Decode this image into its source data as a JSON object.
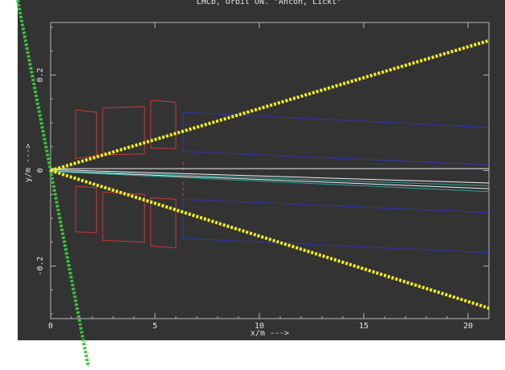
{
  "chart_data": {
    "type": "line",
    "title": "LHCb, Orbit ON. \"Ahcoh, Lickt\"",
    "xlabel": "x/m --->",
    "ylabel": "y/m --->",
    "xlim": [
      0,
      21
    ],
    "ylim": [
      -0.31,
      0.31
    ],
    "x_ticks": [
      0,
      5,
      10,
      15,
      20
    ],
    "y_ticks": [
      -0.2,
      0,
      0.2
    ],
    "x_tick_labels": [
      "0",
      "5",
      "10",
      "15",
      "20"
    ],
    "y_tick_labels": [
      "-0.2",
      "0",
      "0.2"
    ],
    "grid": false,
    "colors": {
      "background": "#333333",
      "frame": "#b4b4b4",
      "text": "#e6e6e6",
      "red": "#c93a3a",
      "blue": "#2f35b8",
      "white": "#f2f2f2",
      "teal": "#2aa59a",
      "green": "#39c93b",
      "yellow": "#f4f01e"
    },
    "series": [
      {
        "color": "red",
        "style": "solid",
        "x": [
          1.2,
          2.2,
          2.2,
          1.2,
          1.2
        ],
        "y": [
          0.127,
          0.122,
          0.031,
          0.025,
          0.127
        ]
      },
      {
        "color": "red",
        "style": "solid",
        "x": [
          2.5,
          4.5,
          4.5,
          2.5,
          2.5
        ],
        "y": [
          0.131,
          0.134,
          0.035,
          0.033,
          0.131
        ]
      },
      {
        "color": "red",
        "style": "solid",
        "x": [
          4.8,
          6.0,
          6.0,
          4.8,
          4.8
        ],
        "y": [
          0.147,
          0.143,
          0.046,
          0.047,
          0.147
        ]
      },
      {
        "color": "red",
        "style": "solid",
        "x": [
          1.2,
          2.2,
          2.2,
          1.2,
          1.2
        ],
        "y": [
          -0.033,
          -0.036,
          -0.13,
          -0.128,
          -0.033
        ]
      },
      {
        "color": "red",
        "style": "solid",
        "x": [
          2.5,
          4.5,
          4.5,
          2.5,
          2.5
        ],
        "y": [
          -0.045,
          -0.05,
          -0.15,
          -0.146,
          -0.045
        ]
      },
      {
        "color": "red",
        "style": "solid",
        "x": [
          4.8,
          6.0,
          6.0,
          4.8,
          4.8
        ],
        "y": [
          -0.057,
          -0.06,
          -0.162,
          -0.158,
          -0.057
        ]
      },
      {
        "color": "red",
        "style": "dashed",
        "x": [
          6.35,
          6.35
        ],
        "y": [
          0.0,
          0.023
        ]
      },
      {
        "color": "red",
        "style": "dashed",
        "x": [
          6.35,
          6.35
        ],
        "y": [
          -0.023,
          -0.052
        ]
      },
      {
        "color": "blue",
        "style": "solid",
        "x": [
          21.0,
          6.35,
          6.35,
          21.0
        ],
        "y": [
          0.09,
          0.122,
          0.04,
          0.012
        ]
      },
      {
        "color": "blue",
        "style": "solid",
        "x": [
          21.0,
          6.35,
          6.35,
          21.0
        ],
        "y": [
          -0.088,
          -0.06,
          -0.142,
          -0.172
        ]
      },
      {
        "color": "white",
        "style": "solid",
        "x": [
          0,
          21
        ],
        "y": [
          0.004,
          0.004
        ]
      },
      {
        "color": "white",
        "style": "solid",
        "x": [
          0,
          21
        ],
        "y": [
          0.002,
          -0.026
        ]
      },
      {
        "color": "white",
        "style": "solid",
        "x": [
          0,
          21
        ],
        "y": [
          -0.001,
          -0.038
        ]
      },
      {
        "color": "teal",
        "style": "solid",
        "x": [
          0,
          21
        ],
        "y": [
          0.0,
          -0.032
        ]
      },
      {
        "color": "teal",
        "style": "solid",
        "x": [
          0,
          21
        ],
        "y": [
          -0.002,
          -0.044
        ]
      },
      {
        "color": "green",
        "style": "dotted",
        "x": [
          1.94,
          0.0,
          -2.03
        ],
        "y": [
          -0.44,
          0.0,
          0.46
        ]
      },
      {
        "color": "yellow",
        "style": "dotted",
        "x": [
          0,
          21.0
        ],
        "y": [
          0.0,
          0.272
        ]
      },
      {
        "color": "yellow",
        "style": "dotted",
        "x": [
          0,
          21.0
        ],
        "y": [
          0.0,
          -0.288
        ]
      }
    ]
  }
}
